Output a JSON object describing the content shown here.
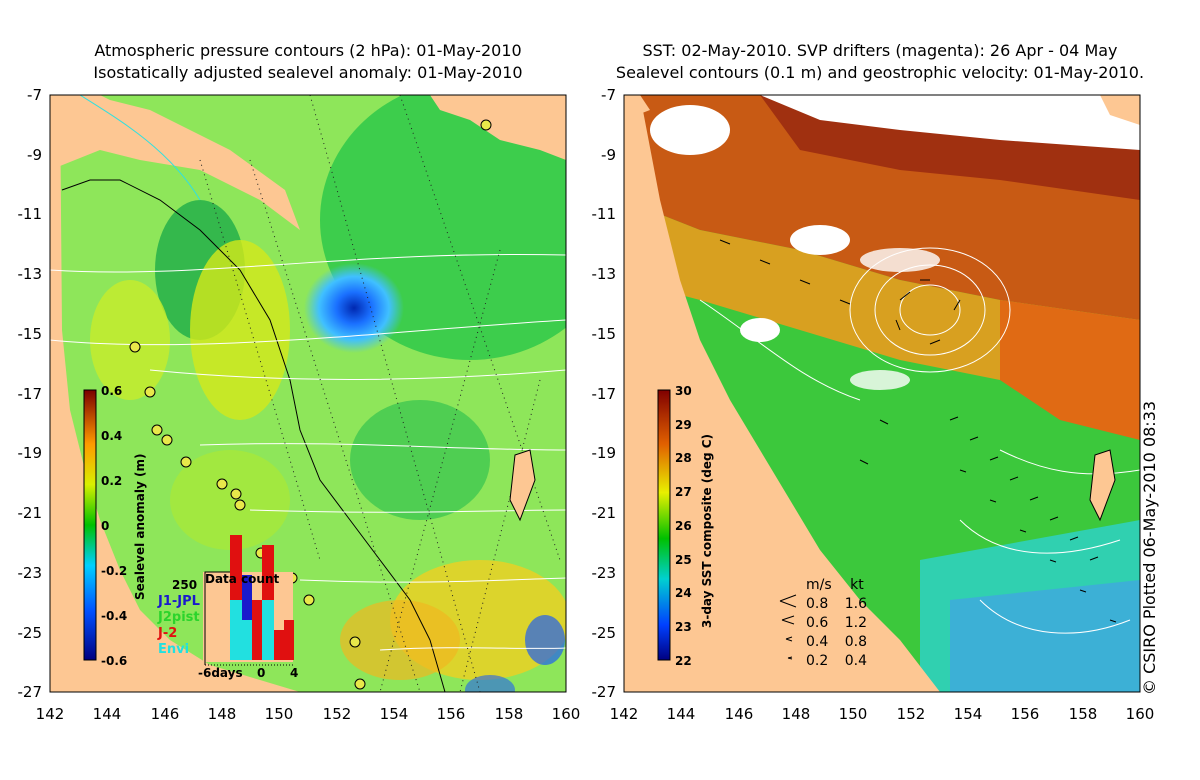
{
  "left_panel": {
    "title_line1": "Atmospheric pressure contours (2 hPa): 01-May-2010",
    "title_line2": "Isostatically adjusted sealevel anomaly: 01-May-2010",
    "colorbar_label": "Sealevel anomaly (m)",
    "colorbar_ticks": [
      "0.6",
      "0.4",
      "0.2",
      "0",
      "-0.2",
      "-0.4",
      "-0.6"
    ],
    "inset": {
      "title": "Data count",
      "max_label": "250",
      "legend": [
        {
          "label": "J1-JPL",
          "color": "#1a1acc"
        },
        {
          "label": "J2pist",
          "color": "#2bd42b"
        },
        {
          "label": "J-2",
          "color": "#e01010"
        },
        {
          "label": "Envi",
          "color": "#22e0e0"
        }
      ],
      "x_ticks": [
        "-6days",
        "0",
        "4"
      ]
    }
  },
  "right_panel": {
    "title_line1": "SST: 02-May-2010. SVP drifters (magenta): 26 Apr - 04 May",
    "title_line2": "Sealevel contours (0.1 m) and geostrophic velocity: 01-May-2010.",
    "colorbar_label": "3-day SST composite (deg C)",
    "colorbar_ticks": [
      "30",
      "29",
      "28",
      "27",
      "26",
      "25",
      "24",
      "23",
      "22"
    ],
    "velocity_legend": {
      "header_ms": "m/s",
      "header_kt": "kt",
      "rows": [
        {
          "ms": "0.8",
          "kt": "1.6"
        },
        {
          "ms": "0.6",
          "kt": "1.2"
        },
        {
          "ms": "0.4",
          "kt": "0.8"
        },
        {
          "ms": "0.2",
          "kt": "0.4"
        }
      ]
    }
  },
  "axes": {
    "y_ticks": [
      "-7",
      "-9",
      "-11",
      "-13",
      "-15",
      "-17",
      "-19",
      "-21",
      "-23",
      "-25",
      "-27"
    ],
    "x_ticks": [
      "142",
      "144",
      "146",
      "148",
      "150",
      "152",
      "154",
      "156",
      "158",
      "160"
    ]
  },
  "credit": "© CSIRO Plotted 06-May-2010 08:33"
}
